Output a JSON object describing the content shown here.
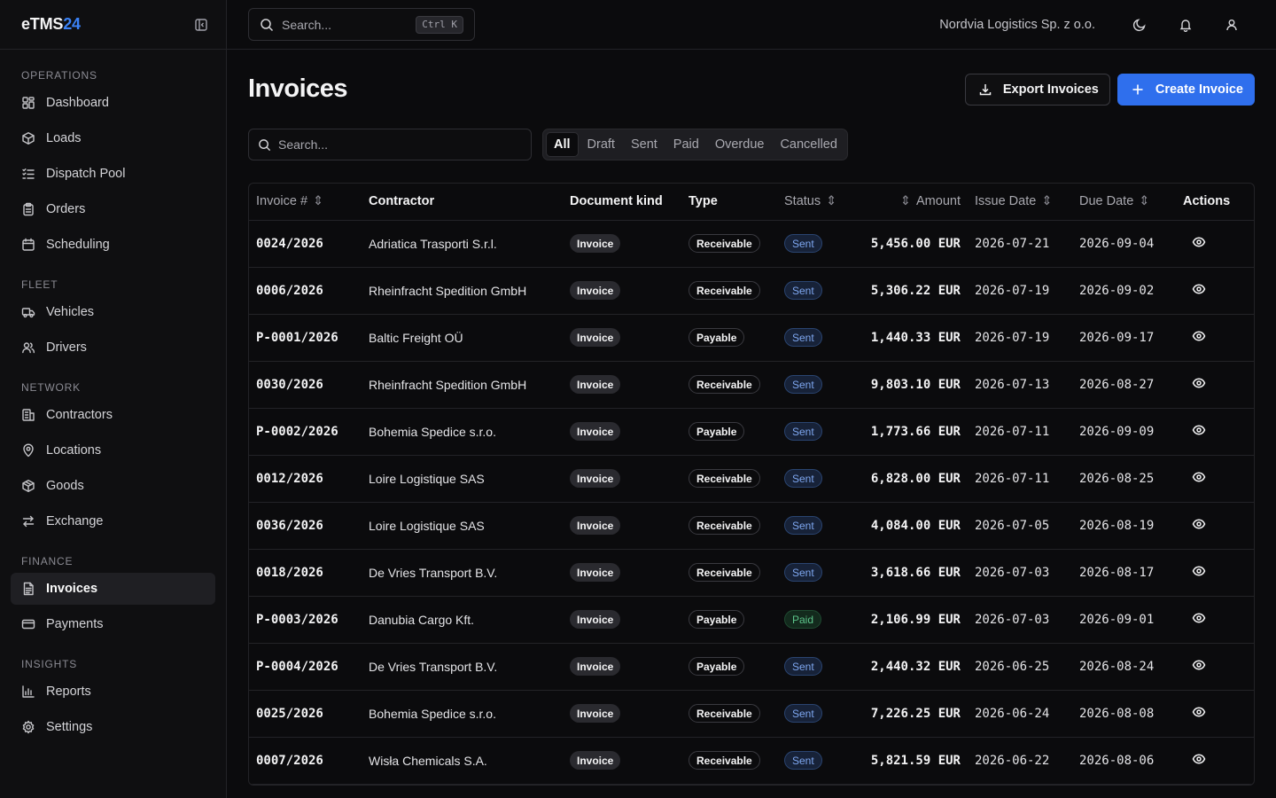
{
  "brand": {
    "name": "eTMS",
    "suffix": "24",
    "accent_color": "#3b82f6"
  },
  "sidebar": {
    "sections": [
      {
        "label": "OPERATIONS",
        "items": [
          {
            "label": "Dashboard",
            "icon": "layout-grid-icon"
          },
          {
            "label": "Loads",
            "icon": "package-icon"
          },
          {
            "label": "Dispatch Pool",
            "icon": "list-checks-icon"
          },
          {
            "label": "Orders",
            "icon": "clipboard-icon"
          },
          {
            "label": "Scheduling",
            "icon": "calendar-icon"
          }
        ]
      },
      {
        "label": "FLEET",
        "items": [
          {
            "label": "Vehicles",
            "icon": "truck-icon"
          },
          {
            "label": "Drivers",
            "icon": "users-icon"
          }
        ]
      },
      {
        "label": "NETWORK",
        "items": [
          {
            "label": "Contractors",
            "icon": "building-icon"
          },
          {
            "label": "Locations",
            "icon": "map-pin-icon"
          },
          {
            "label": "Goods",
            "icon": "box-icon"
          },
          {
            "label": "Exchange",
            "icon": "arrows-exchange-icon"
          }
        ]
      },
      {
        "label": "FINANCE",
        "items": [
          {
            "label": "Invoices",
            "icon": "file-text-icon",
            "active": true
          },
          {
            "label": "Payments",
            "icon": "credit-card-icon"
          }
        ]
      },
      {
        "label": "INSIGHTS",
        "items": [
          {
            "label": "Reports",
            "icon": "bar-chart-icon"
          },
          {
            "label": "Settings",
            "icon": "gear-icon"
          }
        ]
      }
    ]
  },
  "topbar": {
    "search_placeholder": "Search...",
    "shortcut": "Ctrl K",
    "company": "Nordvia Logistics Sp. z o.o."
  },
  "page": {
    "title": "Invoices",
    "export_label": "Export Invoices",
    "create_label": "Create Invoice",
    "search_placeholder": "Search...",
    "tabs": [
      "All",
      "Draft",
      "Sent",
      "Paid",
      "Overdue",
      "Cancelled"
    ],
    "active_tab": "All"
  },
  "table": {
    "columns": [
      "Invoice #",
      "Contractor",
      "Document kind",
      "Type",
      "Status",
      "Amount",
      "Issue Date",
      "Due Date",
      "Actions"
    ],
    "rows": [
      {
        "number": "0024/2026",
        "contractor": "Adriatica Trasporti S.r.l.",
        "kind": "Invoice",
        "type": "Receivable",
        "status": "Sent",
        "amount": "5,456.00 EUR",
        "issue": "2026-07-21",
        "due": "2026-09-04"
      },
      {
        "number": "0006/2026",
        "contractor": "Rheinfracht Spedition GmbH",
        "kind": "Invoice",
        "type": "Receivable",
        "status": "Sent",
        "amount": "5,306.22 EUR",
        "issue": "2026-07-19",
        "due": "2026-09-02"
      },
      {
        "number": "P-0001/2026",
        "contractor": "Baltic Freight OÜ",
        "kind": "Invoice",
        "type": "Payable",
        "status": "Sent",
        "amount": "1,440.33 EUR",
        "issue": "2026-07-19",
        "due": "2026-09-17"
      },
      {
        "number": "0030/2026",
        "contractor": "Rheinfracht Spedition GmbH",
        "kind": "Invoice",
        "type": "Receivable",
        "status": "Sent",
        "amount": "9,803.10 EUR",
        "issue": "2026-07-13",
        "due": "2026-08-27"
      },
      {
        "number": "P-0002/2026",
        "contractor": "Bohemia Spedice s.r.o.",
        "kind": "Invoice",
        "type": "Payable",
        "status": "Sent",
        "amount": "1,773.66 EUR",
        "issue": "2026-07-11",
        "due": "2026-09-09"
      },
      {
        "number": "0012/2026",
        "contractor": "Loire Logistique SAS",
        "kind": "Invoice",
        "type": "Receivable",
        "status": "Sent",
        "amount": "6,828.00 EUR",
        "issue": "2026-07-11",
        "due": "2026-08-25"
      },
      {
        "number": "0036/2026",
        "contractor": "Loire Logistique SAS",
        "kind": "Invoice",
        "type": "Receivable",
        "status": "Sent",
        "amount": "4,084.00 EUR",
        "issue": "2026-07-05",
        "due": "2026-08-19"
      },
      {
        "number": "0018/2026",
        "contractor": "De Vries Transport B.V.",
        "kind": "Invoice",
        "type": "Receivable",
        "status": "Sent",
        "amount": "3,618.66 EUR",
        "issue": "2026-07-03",
        "due": "2026-08-17"
      },
      {
        "number": "P-0003/2026",
        "contractor": "Danubia Cargo Kft.",
        "kind": "Invoice",
        "type": "Payable",
        "status": "Paid",
        "amount": "2,106.99 EUR",
        "issue": "2026-07-03",
        "due": "2026-09-01"
      },
      {
        "number": "P-0004/2026",
        "contractor": "De Vries Transport B.V.",
        "kind": "Invoice",
        "type": "Payable",
        "status": "Sent",
        "amount": "2,440.32 EUR",
        "issue": "2026-06-25",
        "due": "2026-08-24"
      },
      {
        "number": "0025/2026",
        "contractor": "Bohemia Spedice s.r.o.",
        "kind": "Invoice",
        "type": "Receivable",
        "status": "Sent",
        "amount": "7,226.25 EUR",
        "issue": "2026-06-24",
        "due": "2026-08-08"
      },
      {
        "number": "0007/2026",
        "contractor": "Wisła Chemicals S.A.",
        "kind": "Invoice",
        "type": "Receivable",
        "status": "Sent",
        "amount": "5,821.59 EUR",
        "issue": "2026-06-22",
        "due": "2026-08-06"
      }
    ]
  }
}
